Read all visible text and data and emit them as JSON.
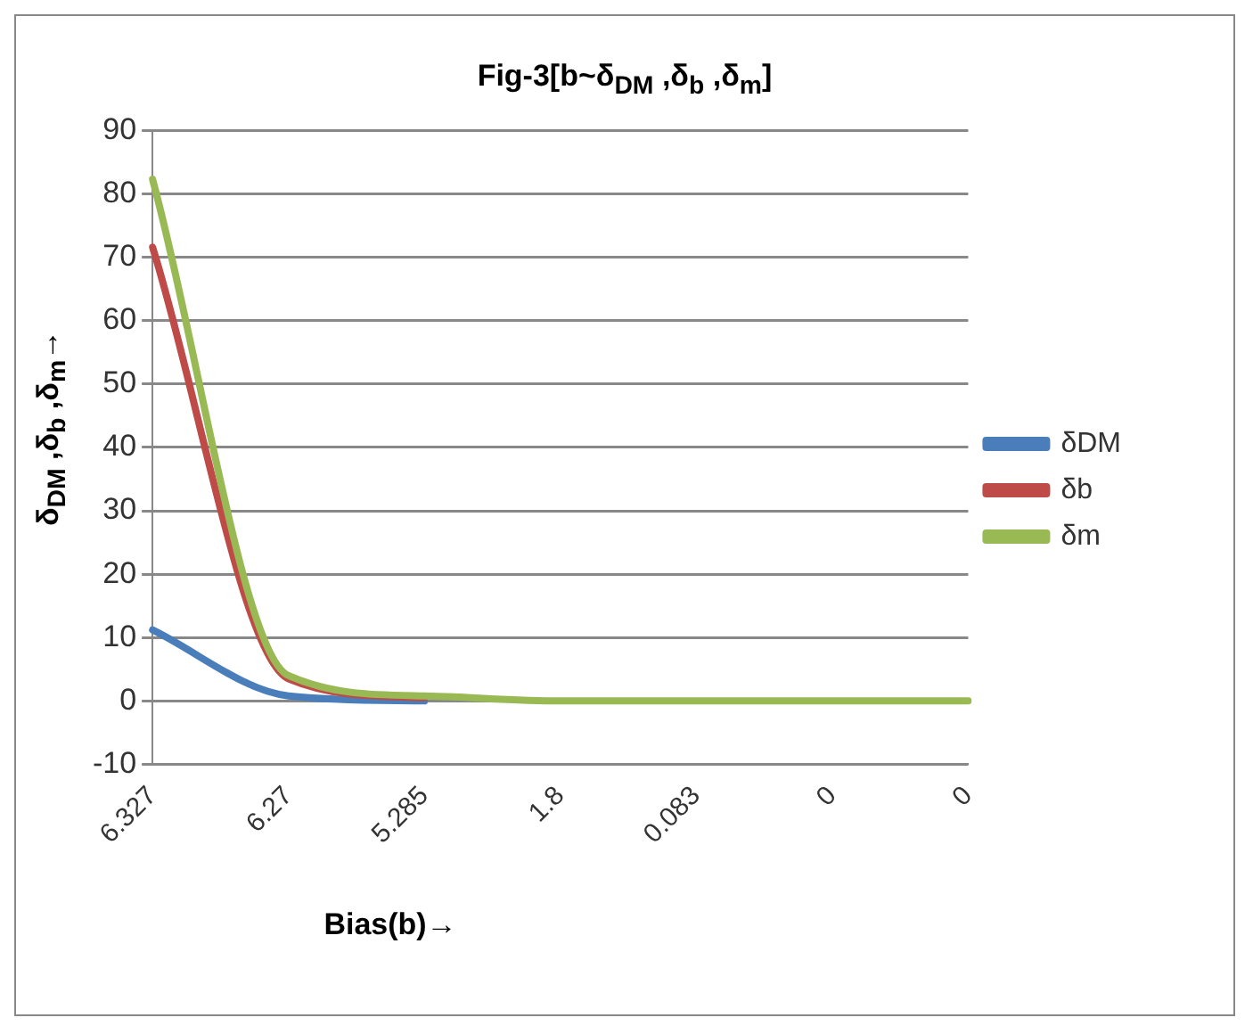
{
  "chart_data": {
    "type": "line",
    "title": "Fig-3[b~δ$_{DM}$ ,δ$_{b}$ ,δ$_{m}$]",
    "xlabel": "Bias(b)→",
    "ylabel": "δ$_{DM}$ ,δ$_{b}$ ,δ$_{m}$→",
    "categories": [
      "6.327",
      "6.27",
      "5.285",
      "1.8",
      "0.083",
      "0",
      "0"
    ],
    "series": [
      {
        "name": "δDM",
        "color": "#4a7ebb",
        "values": [
          11.2,
          0.8,
          0,
          null,
          null,
          null,
          null
        ]
      },
      {
        "name": "δb",
        "color": "#be4b48",
        "values": [
          71.6,
          3.5,
          0.5,
          null,
          null,
          null,
          null
        ]
      },
      {
        "name": "δm",
        "color": "#98b954",
        "values": [
          82.3,
          4,
          0.8,
          0,
          0,
          0,
          0
        ]
      }
    ],
    "ylim": [
      -10,
      90
    ],
    "yticks": [
      -10,
      0,
      10,
      20,
      30,
      40,
      50,
      60,
      70,
      80,
      90
    ],
    "grid": "y",
    "legend": "right",
    "marker": "none",
    "line_style": "solid"
  }
}
